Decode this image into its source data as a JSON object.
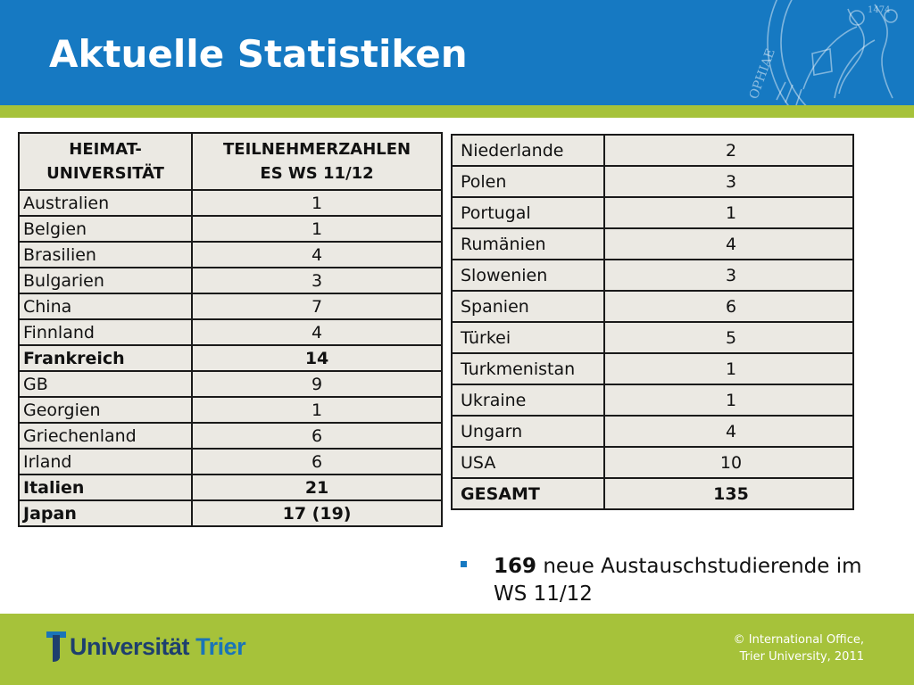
{
  "title": "Aktuelle Statistiken",
  "seal": {
    "inscriptions": [
      "1474",
      "OPHIAE"
    ]
  },
  "colors": {
    "header_blue": "#1679c2",
    "accent_green": "#a6c23a",
    "table_bg": "#ebe9e3",
    "logo_navy": "#1e3f6e"
  },
  "table_left": {
    "headers": [
      "HEIMAT-\nUNIVERSITÄT",
      "TEILNEHMERZAHLEN\nES WS 11/12"
    ],
    "rows": [
      {
        "country": "Australien",
        "count": "1",
        "bold": false
      },
      {
        "country": "Belgien",
        "count": "1",
        "bold": false
      },
      {
        "country": "Brasilien",
        "count": "4",
        "bold": false
      },
      {
        "country": "Bulgarien",
        "count": "3",
        "bold": false
      },
      {
        "country": "China",
        "count": "7",
        "bold": false
      },
      {
        "country": "Finnland",
        "count": "4",
        "bold": false
      },
      {
        "country": "Frankreich",
        "count": "14",
        "bold": true
      },
      {
        "country": "GB",
        "count": "9",
        "bold": false
      },
      {
        "country": "Georgien",
        "count": "1",
        "bold": false
      },
      {
        "country": "Griechenland",
        "count": "6",
        "bold": false
      },
      {
        "country": "Irland",
        "count": "6",
        "bold": false
      },
      {
        "country": "Italien",
        "count": "21",
        "bold": true
      },
      {
        "country": "Japan",
        "count": "17 (19)",
        "bold": true
      }
    ]
  },
  "table_right": {
    "rows": [
      {
        "country": "Niederlande",
        "count": "2",
        "bold": false
      },
      {
        "country": "Polen",
        "count": "3",
        "bold": false
      },
      {
        "country": "Portugal",
        "count": "1",
        "bold": false
      },
      {
        "country": "Rumänien",
        "count": "4",
        "bold": false
      },
      {
        "country": "Slowenien",
        "count": "3",
        "bold": false
      },
      {
        "country": "Spanien",
        "count": "6",
        "bold": false
      },
      {
        "country": "Türkei",
        "count": "5",
        "bold": false
      },
      {
        "country": "Turkmenistan",
        "count": "1",
        "bold": false
      },
      {
        "country": "Ukraine",
        "count": "1",
        "bold": false
      },
      {
        "country": "Ungarn",
        "count": "4",
        "bold": false
      },
      {
        "country": "USA",
        "count": "10",
        "bold": false
      },
      {
        "country": "GESAMT",
        "count": "135",
        "bold": true
      }
    ]
  },
  "bullet": {
    "number": "169",
    "text": "neue Austauschstudierende im WS 11/12"
  },
  "footer": {
    "logo_word": "Universität",
    "logo_accent": "Trier",
    "copyright_line1": "© International Office,",
    "copyright_line2": "Trier University, 2011"
  }
}
